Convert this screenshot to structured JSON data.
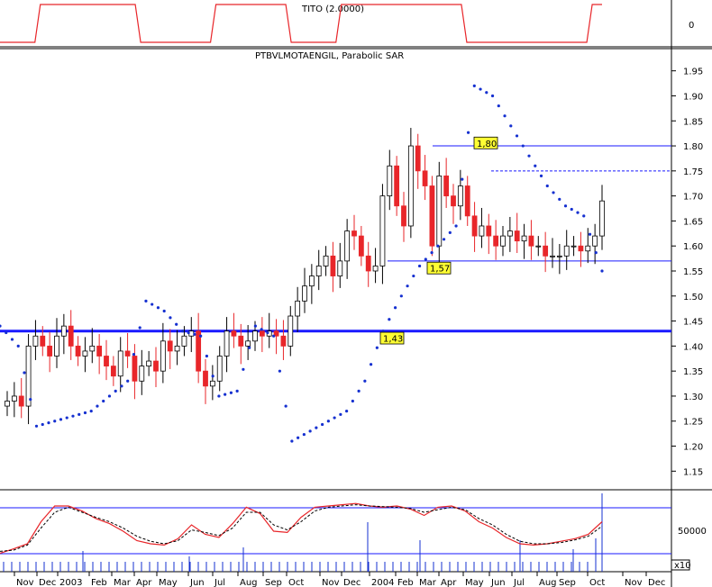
{
  "panels": {
    "indicator_title": "TITO (2.0000)",
    "main_title": "PTBVLMOTAENGIL, Parabolic SAR",
    "top_axis_label": "0",
    "volume_axis_label": "50000",
    "x10_label": "x10"
  },
  "colors": {
    "up_candle": "#ffffff",
    "down_candle": "#e8262a",
    "sar": "#1530d0",
    "ref_line": "#1a1aff",
    "stoch_k": "#e8262a",
    "stoch_d": "#000000",
    "volume": "#1530d0",
    "label_bg": "#ffff33"
  },
  "chart_data": [
    {
      "type": "line",
      "title": "TITO (2.0000)",
      "description": "binary step indicator",
      "x": [
        "Oct",
        "Nov",
        "Dec",
        "2003",
        "Feb",
        "Mar",
        "Apr",
        "May",
        "Jun",
        "Jul",
        "Aug",
        "Sep",
        "Oct",
        "Nov",
        "Dec",
        "2004",
        "Feb",
        "Mar",
        "Apr",
        "May",
        "Jun",
        "Jul",
        "Aug",
        "Sep",
        "Oct"
      ],
      "values": [
        0,
        0,
        1,
        1,
        1,
        1,
        0,
        0,
        0,
        1,
        1,
        1,
        0,
        0,
        1,
        1,
        1,
        1,
        1,
        0,
        0,
        0,
        0,
        0,
        1
      ]
    },
    {
      "type": "candlestick",
      "title": "PTBVLMOTAENGIL, Parabolic SAR",
      "y_ticks": [
        "1.95",
        "1.90",
        "1.85",
        "1.80",
        "1.75",
        "1.70",
        "1.65",
        "1.60",
        "1.55",
        "1.50",
        "1.45",
        "1.40",
        "1.35",
        "1.30",
        "1.25",
        "1.20",
        "1.15"
      ],
      "ylim": [
        1.12,
        1.98
      ],
      "x_labels": [
        "Nov",
        "Dec",
        "2003",
        "Feb",
        "Mar",
        "Apr",
        "May",
        "Jun",
        "Jul",
        "Aug",
        "Sep",
        "Oct",
        "Nov",
        "Dec",
        "2004",
        "Feb",
        "Mar",
        "Apr",
        "May",
        "Jun",
        "Jul",
        "Aug",
        "Sep",
        "Oct",
        "Nov",
        "Dec"
      ],
      "annotations": [
        "1,80",
        "1,57",
        "1,43"
      ],
      "ref_levels": {
        "thick": 1.43,
        "upper": 1.8,
        "dashed": 1.75,
        "lower": 1.57
      },
      "series": [
        {
          "name": "PTBVLMOTAENGIL",
          "close": [
            1.29,
            1.3,
            1.28,
            1.4,
            1.42,
            1.4,
            1.38,
            1.42,
            1.44,
            1.4,
            1.38,
            1.39,
            1.4,
            1.38,
            1.36,
            1.34,
            1.39,
            1.38,
            1.33,
            1.36,
            1.37,
            1.35,
            1.41,
            1.39,
            1.4,
            1.42,
            1.43,
            1.35,
            1.32,
            1.33,
            1.38,
            1.43,
            1.42,
            1.4,
            1.41,
            1.43,
            1.42,
            1.43,
            1.42,
            1.4,
            1.46,
            1.49,
            1.52,
            1.54,
            1.56,
            1.58,
            1.54,
            1.57,
            1.63,
            1.62,
            1.58,
            1.55,
            1.56,
            1.7,
            1.76,
            1.68,
            1.64,
            1.8,
            1.75,
            1.72,
            1.6,
            1.74,
            1.7,
            1.68,
            1.72,
            1.66,
            1.62,
            1.64,
            1.62,
            1.6,
            1.62,
            1.63,
            1.61,
            1.62,
            1.6,
            1.6,
            1.58,
            1.58,
            1.58,
            1.6,
            1.6,
            1.59,
            1.6,
            1.62,
            1.69
          ]
        },
        {
          "name": "Parabolic SAR",
          "values": [
            1.44,
            1.4,
            1.24,
            1.25,
            1.26,
            1.27,
            1.3,
            1.33,
            1.49,
            1.47,
            1.43,
            1.42,
            1.3,
            1.31,
            1.44,
            1.42,
            1.21,
            1.23,
            1.25,
            1.27,
            1.33,
            1.43,
            1.5,
            1.56,
            1.6,
            1.64,
            1.92,
            1.9,
            1.84,
            1.78,
            1.72,
            1.68,
            1.66,
            1.55
          ]
        }
      ]
    },
    {
      "type": "line",
      "title": "",
      "description": "stochastic oscillator with volume bars",
      "series": [
        {
          "name": "%K",
          "values": [
            5,
            12,
            20,
            55,
            80,
            80,
            72,
            60,
            52,
            40,
            25,
            20,
            18,
            28,
            50,
            35,
            30,
            52,
            78,
            68,
            40,
            38,
            62,
            78,
            80,
            82,
            84,
            80,
            78,
            80,
            75,
            65,
            78,
            80,
            72,
            55,
            45,
            30,
            20,
            18,
            20,
            24,
            28,
            35,
            55
          ]
        },
        {
          "name": "%D",
          "values": [
            8,
            10,
            18,
            45,
            70,
            78,
            70,
            62,
            55,
            45,
            32,
            24,
            20,
            25,
            42,
            38,
            33,
            45,
            70,
            70,
            50,
            42,
            55,
            72,
            78,
            80,
            82,
            80,
            79,
            78,
            76,
            70,
            74,
            78,
            74,
            60,
            50,
            35,
            24,
            20,
            20,
            22,
            26,
            32,
            48
          ]
        }
      ]
    }
  ]
}
